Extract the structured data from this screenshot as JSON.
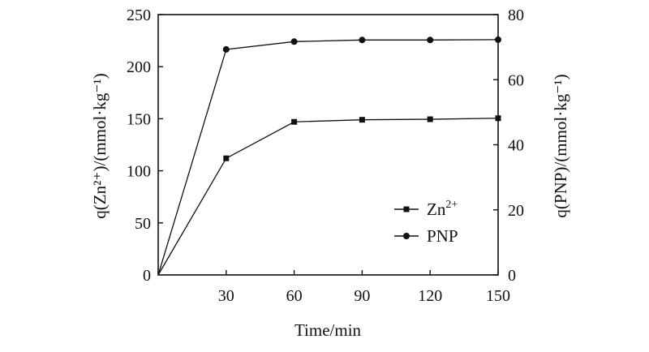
{
  "chart_data": {
    "type": "line",
    "x": [
      0,
      30,
      60,
      90,
      120,
      150
    ],
    "xlabel": "Time/min",
    "ylabel_left": "q(Zn²⁺)/(mmol·kg⁻¹)",
    "ylabel_right": "q(PNP)/(mmol·kg⁻¹)",
    "xlim": [
      0,
      150
    ],
    "ylim_left": [
      0,
      250
    ],
    "ylim_right": [
      0,
      80
    ],
    "xticks": [
      "30",
      "60",
      "90",
      "120",
      "150"
    ],
    "origin_label": "0",
    "yticks_left": [
      "50",
      "100",
      "150",
      "200",
      "250"
    ],
    "yticks_right": [
      "0",
      "20",
      "40",
      "60",
      "80"
    ],
    "grid": false,
    "legend_position": "lower-right",
    "series": [
      {
        "name": "Zn2+",
        "axis": "left",
        "marker": "square",
        "values": [
          0,
          112,
          147,
          149,
          149.5,
          150.5
        ]
      },
      {
        "name": "PNP",
        "axis": "right",
        "marker": "circle",
        "values": [
          0,
          69.3,
          71.7,
          72.2,
          72.2,
          72.3
        ]
      }
    ],
    "legend": [
      {
        "label": "Zn",
        "sup": "2+"
      },
      {
        "label": "PNP",
        "sup": ""
      }
    ]
  }
}
